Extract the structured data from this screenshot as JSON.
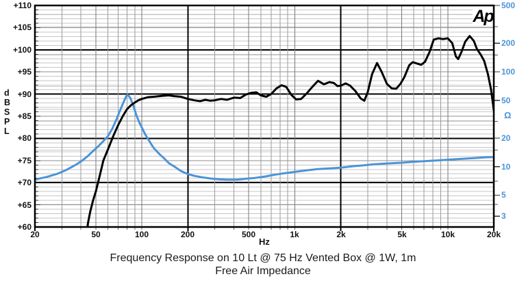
{
  "header": {
    "logo": "Ap"
  },
  "chart_data": {
    "type": "line",
    "title": "Frequency Response on 10 Lt @ 75 Hz Vented Box @ 1W, 1m",
    "subtitle": "Free Air Impedance",
    "grid": {
      "minor_vertical": "#9a9a9a",
      "mid_vertical": "#777777",
      "minor_horizontal": "#c6c6c6",
      "mid_horizontal": "#8f8f8f",
      "major": "#000000"
    },
    "x_axis": {
      "label": "Hz",
      "scale": "log",
      "min": 20,
      "max": 20000,
      "ticks": [
        {
          "value": 20,
          "label": "20"
        },
        {
          "value": 50,
          "label": "50"
        },
        {
          "value": 100,
          "label": "100"
        },
        {
          "value": 200,
          "label": "200"
        },
        {
          "value": 500,
          "label": "500"
        },
        {
          "value": 1000,
          "label": "1k"
        },
        {
          "value": 2000,
          "label": "2k"
        },
        {
          "value": 5000,
          "label": "5k"
        },
        {
          "value": 10000,
          "label": "10k"
        },
        {
          "value": 20000,
          "label": "20k"
        }
      ]
    },
    "y_left": {
      "label": "dB\nSPL",
      "scale": "linear",
      "min": 60,
      "max": 110,
      "major_step": 10,
      "mid_step": 5,
      "minor_step": 1,
      "tick_labels": [
        {
          "value": 110,
          "label": "+110"
        },
        {
          "value": 105,
          "label": "+105"
        },
        {
          "value": 100,
          "label": "+100"
        },
        {
          "value": 95,
          "label": "+95"
        },
        {
          "value": 90,
          "label": "+90"
        },
        {
          "value": 85,
          "label": "+85"
        },
        {
          "value": 80,
          "label": "+80"
        },
        {
          "value": 75,
          "label": "+75"
        },
        {
          "value": 70,
          "label": "+70"
        },
        {
          "value": 65,
          "label": "+65"
        },
        {
          "value": 60,
          "label": "+60"
        }
      ]
    },
    "y_right": {
      "label": "Ω",
      "scale": "log",
      "max": 500,
      "min": 2.31,
      "color": "#4a94d8",
      "tick_labels": [
        {
          "value": 500,
          "label": "500"
        },
        {
          "value": 200,
          "label": "200"
        },
        {
          "value": 100,
          "label": "100"
        },
        {
          "value": 50,
          "label": "50"
        },
        {
          "value": 20,
          "label": "20"
        },
        {
          "value": 10,
          "label": "10"
        },
        {
          "value": 5,
          "label": "5"
        },
        {
          "value": 3,
          "label": "3"
        }
      ],
      "minor_ticks": [
        300,
        150,
        70,
        30,
        15,
        7,
        4
      ],
      "grid_minor": [
        400,
        300,
        150,
        70,
        40,
        30,
        15,
        7,
        4
      ]
    },
    "series": [
      {
        "name": "Frequency Response (dB SPL)",
        "axis": "left",
        "color": "#000000",
        "points": [
          [
            43,
            57
          ],
          [
            44.5,
            61
          ],
          [
            46,
            63.5
          ],
          [
            48,
            66
          ],
          [
            50,
            68
          ],
          [
            53,
            71.5
          ],
          [
            56,
            75
          ],
          [
            60,
            77.5
          ],
          [
            65,
            80.5
          ],
          [
            70,
            83
          ],
          [
            75,
            85
          ],
          [
            80,
            86.6
          ],
          [
            85,
            87.5
          ],
          [
            90,
            88.1
          ],
          [
            95,
            88.6
          ],
          [
            100,
            88.9
          ],
          [
            110,
            89.3
          ],
          [
            120,
            89.4
          ],
          [
            135,
            89.6
          ],
          [
            150,
            89.7
          ],
          [
            165,
            89.5
          ],
          [
            180,
            89.4
          ],
          [
            200,
            88.9
          ],
          [
            220,
            88.6
          ],
          [
            240,
            88.4
          ],
          [
            260,
            88.7
          ],
          [
            280,
            88.5
          ],
          [
            300,
            88.6
          ],
          [
            330,
            88.9
          ],
          [
            360,
            88.7
          ],
          [
            400,
            89.2
          ],
          [
            440,
            89.1
          ],
          [
            480,
            89.9
          ],
          [
            520,
            90.3
          ],
          [
            560,
            90.4
          ],
          [
            600,
            89.7
          ],
          [
            650,
            89.4
          ],
          [
            700,
            90.0
          ],
          [
            760,
            91.3
          ],
          [
            820,
            92.0
          ],
          [
            880,
            91.6
          ],
          [
            950,
            89.8
          ],
          [
            1020,
            88.8
          ],
          [
            1100,
            88.9
          ],
          [
            1200,
            90.2
          ],
          [
            1300,
            91.6
          ],
          [
            1420,
            93.0
          ],
          [
            1550,
            92.2
          ],
          [
            1680,
            92.7
          ],
          [
            1800,
            92.5
          ],
          [
            1900,
            91.8
          ],
          [
            2000,
            91.9
          ],
          [
            2150,
            92.4
          ],
          [
            2300,
            91.9
          ],
          [
            2500,
            90.6
          ],
          [
            2700,
            89.0
          ],
          [
            2850,
            88.5
          ],
          [
            3000,
            90.5
          ],
          [
            3200,
            94.5
          ],
          [
            3450,
            97.0
          ],
          [
            3700,
            95.0
          ],
          [
            4000,
            92.3
          ],
          [
            4300,
            91.3
          ],
          [
            4600,
            91.2
          ],
          [
            4900,
            92.3
          ],
          [
            5200,
            93.8
          ],
          [
            5600,
            96.5
          ],
          [
            5900,
            97.2
          ],
          [
            6300,
            96.9
          ],
          [
            6700,
            96.6
          ],
          [
            7100,
            97.3
          ],
          [
            7600,
            99.5
          ],
          [
            8100,
            102.3
          ],
          [
            8700,
            102.6
          ],
          [
            9300,
            102.4
          ],
          [
            10000,
            102.6
          ],
          [
            10700,
            101.5
          ],
          [
            11300,
            98.5
          ],
          [
            11700,
            97.9
          ],
          [
            12300,
            99.5
          ],
          [
            13000,
            101.8
          ],
          [
            13900,
            103.1
          ],
          [
            14800,
            102.0
          ],
          [
            15500,
            100.2
          ],
          [
            16500,
            98.8
          ],
          [
            17300,
            97.5
          ],
          [
            18300,
            94.5
          ],
          [
            19200,
            91.0
          ],
          [
            19800,
            87.5
          ],
          [
            20000,
            86.3
          ]
        ]
      },
      {
        "name": "Free Air Impedance (Ω)",
        "axis": "right",
        "color": "#4a94d8",
        "points": [
          [
            20,
            7.3
          ],
          [
            24,
            7.8
          ],
          [
            28,
            8.4
          ],
          [
            32,
            9.2
          ],
          [
            36,
            10.2
          ],
          [
            40,
            11.3
          ],
          [
            44,
            12.8
          ],
          [
            48,
            14.6
          ],
          [
            52,
            16.4
          ],
          [
            56,
            18.6
          ],
          [
            60,
            21
          ],
          [
            64,
            25
          ],
          [
            68,
            31
          ],
          [
            72,
            39
          ],
          [
            76,
            48
          ],
          [
            79,
            55
          ],
          [
            81,
            57
          ],
          [
            84,
            53
          ],
          [
            88,
            44
          ],
          [
            92,
            35
          ],
          [
            96,
            29.5
          ],
          [
            100,
            25.8
          ],
          [
            105,
            22
          ],
          [
            110,
            19.5
          ],
          [
            115,
            17.3
          ],
          [
            120,
            15.6
          ],
          [
            130,
            13.6
          ],
          [
            140,
            12.2
          ],
          [
            150,
            10.9
          ],
          [
            165,
            9.9
          ],
          [
            180,
            9.0
          ],
          [
            200,
            8.35
          ],
          [
            220,
            8.0
          ],
          [
            250,
            7.7
          ],
          [
            280,
            7.5
          ],
          [
            320,
            7.35
          ],
          [
            360,
            7.3
          ],
          [
            420,
            7.3
          ],
          [
            480,
            7.45
          ],
          [
            550,
            7.6
          ],
          [
            650,
            7.9
          ],
          [
            750,
            8.25
          ],
          [
            850,
            8.5
          ],
          [
            1000,
            8.8
          ],
          [
            1200,
            9.15
          ],
          [
            1400,
            9.4
          ],
          [
            1700,
            9.6
          ],
          [
            2000,
            9.75
          ],
          [
            2400,
            10.1
          ],
          [
            2800,
            10.3
          ],
          [
            3300,
            10.6
          ],
          [
            4000,
            10.8
          ],
          [
            5000,
            11.0
          ],
          [
            6000,
            11.25
          ],
          [
            7000,
            11.4
          ],
          [
            8000,
            11.55
          ],
          [
            9500,
            11.75
          ],
          [
            11000,
            11.95
          ],
          [
            13000,
            12.15
          ],
          [
            16000,
            12.4
          ],
          [
            18000,
            12.55
          ],
          [
            20000,
            12.6
          ]
        ]
      }
    ]
  }
}
